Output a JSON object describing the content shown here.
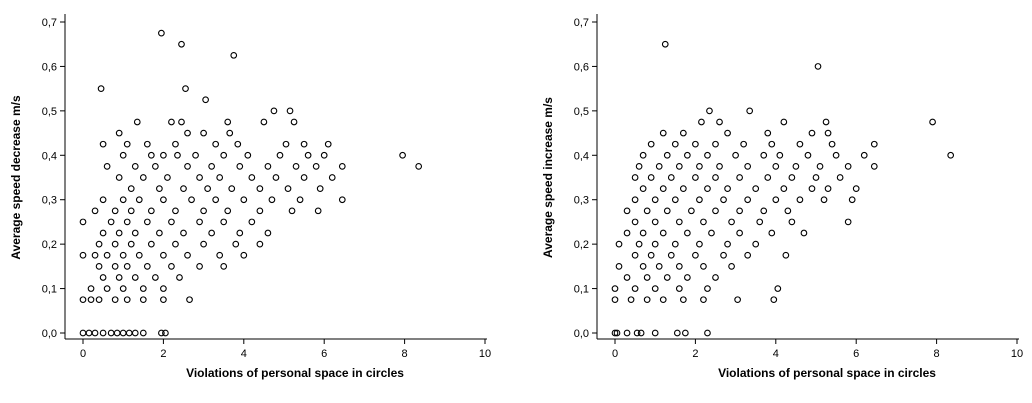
{
  "chart_data": [
    {
      "type": "scatter",
      "title": "",
      "xlabel": "Violations of personal space in circles",
      "ylabel": "Average speed decrease m/s",
      "xlim": [
        0,
        10
      ],
      "ylim": [
        0,
        0.7
      ],
      "x_ticks": [
        "0",
        "2",
        "4",
        "6",
        "8",
        "10"
      ],
      "y_ticks": [
        "0,0",
        "0,1",
        "0,2",
        "0,3",
        "0,4",
        "0,5",
        "0,6",
        "0,7"
      ],
      "grid": false,
      "marker": "open-circle",
      "points": [
        [
          1.95,
          0.675
        ],
        [
          2.45,
          0.65
        ],
        [
          3.75,
          0.625
        ],
        [
          2.55,
          0.55
        ],
        [
          0.45,
          0.55
        ],
        [
          3.05,
          0.525
        ],
        [
          2.2,
          0.475
        ],
        [
          2.45,
          0.475
        ],
        [
          3.6,
          0.475
        ],
        [
          4.75,
          0.5
        ],
        [
          5.15,
          0.5
        ],
        [
          1.35,
          0.475
        ],
        [
          0.9,
          0.45
        ],
        [
          2.6,
          0.45
        ],
        [
          3.0,
          0.45
        ],
        [
          3.65,
          0.45
        ],
        [
          4.5,
          0.475
        ],
        [
          5.25,
          0.475
        ],
        [
          0.5,
          0.425
        ],
        [
          1.1,
          0.425
        ],
        [
          1.6,
          0.425
        ],
        [
          2.3,
          0.425
        ],
        [
          3.3,
          0.425
        ],
        [
          3.85,
          0.425
        ],
        [
          5.05,
          0.425
        ],
        [
          5.5,
          0.425
        ],
        [
          6.1,
          0.425
        ],
        [
          7.95,
          0.4
        ],
        [
          8.35,
          0.375
        ],
        [
          6.45,
          0.375
        ],
        [
          1.0,
          0.4
        ],
        [
          1.7,
          0.4
        ],
        [
          2.0,
          0.4
        ],
        [
          2.35,
          0.4
        ],
        [
          2.8,
          0.4
        ],
        [
          3.5,
          0.4
        ],
        [
          4.1,
          0.4
        ],
        [
          4.9,
          0.4
        ],
        [
          5.6,
          0.4
        ],
        [
          6.0,
          0.4
        ],
        [
          0.6,
          0.375
        ],
        [
          1.3,
          0.375
        ],
        [
          1.8,
          0.375
        ],
        [
          2.6,
          0.375
        ],
        [
          3.2,
          0.375
        ],
        [
          3.9,
          0.375
        ],
        [
          4.6,
          0.375
        ],
        [
          5.3,
          0.375
        ],
        [
          5.8,
          0.375
        ],
        [
          0.9,
          0.35
        ],
        [
          1.5,
          0.35
        ],
        [
          2.1,
          0.35
        ],
        [
          2.9,
          0.35
        ],
        [
          3.4,
          0.35
        ],
        [
          4.2,
          0.35
        ],
        [
          4.8,
          0.35
        ],
        [
          5.5,
          0.35
        ],
        [
          6.2,
          0.35
        ],
        [
          1.2,
          0.325
        ],
        [
          1.9,
          0.325
        ],
        [
          2.5,
          0.325
        ],
        [
          3.1,
          0.325
        ],
        [
          3.7,
          0.325
        ],
        [
          4.4,
          0.325
        ],
        [
          5.1,
          0.325
        ],
        [
          5.9,
          0.325
        ],
        [
          0.5,
          0.3
        ],
        [
          1.0,
          0.3
        ],
        [
          1.4,
          0.3
        ],
        [
          2.0,
          0.3
        ],
        [
          2.7,
          0.3
        ],
        [
          3.3,
          0.3
        ],
        [
          4.0,
          0.3
        ],
        [
          4.7,
          0.3
        ],
        [
          5.4,
          0.3
        ],
        [
          6.45,
          0.3
        ],
        [
          0.3,
          0.275
        ],
        [
          0.8,
          0.275
        ],
        [
          1.2,
          0.275
        ],
        [
          1.7,
          0.275
        ],
        [
          2.3,
          0.275
        ],
        [
          3.0,
          0.275
        ],
        [
          3.6,
          0.275
        ],
        [
          4.4,
          0.275
        ],
        [
          5.2,
          0.275
        ],
        [
          5.85,
          0.275
        ],
        [
          0.0,
          0.25
        ],
        [
          0.7,
          0.25
        ],
        [
          1.1,
          0.25
        ],
        [
          1.6,
          0.25
        ],
        [
          2.2,
          0.25
        ],
        [
          2.9,
          0.25
        ],
        [
          3.5,
          0.25
        ],
        [
          4.2,
          0.25
        ],
        [
          0.5,
          0.225
        ],
        [
          0.9,
          0.225
        ],
        [
          1.3,
          0.225
        ],
        [
          1.9,
          0.225
        ],
        [
          2.5,
          0.225
        ],
        [
          3.2,
          0.225
        ],
        [
          3.9,
          0.225
        ],
        [
          4.6,
          0.225
        ],
        [
          0.4,
          0.2
        ],
        [
          0.8,
          0.2
        ],
        [
          1.2,
          0.2
        ],
        [
          1.7,
          0.2
        ],
        [
          2.3,
          0.2
        ],
        [
          3.0,
          0.2
        ],
        [
          3.8,
          0.2
        ],
        [
          4.4,
          0.2
        ],
        [
          0.0,
          0.175
        ],
        [
          0.3,
          0.175
        ],
        [
          0.6,
          0.175
        ],
        [
          1.0,
          0.175
        ],
        [
          1.4,
          0.175
        ],
        [
          2.0,
          0.175
        ],
        [
          2.6,
          0.175
        ],
        [
          3.4,
          0.175
        ],
        [
          4.0,
          0.175
        ],
        [
          0.4,
          0.15
        ],
        [
          0.8,
          0.15
        ],
        [
          1.1,
          0.15
        ],
        [
          1.6,
          0.15
        ],
        [
          2.2,
          0.15
        ],
        [
          2.9,
          0.15
        ],
        [
          3.5,
          0.15
        ],
        [
          0.5,
          0.125
        ],
        [
          0.9,
          0.125
        ],
        [
          1.3,
          0.125
        ],
        [
          1.8,
          0.125
        ],
        [
          2.4,
          0.125
        ],
        [
          0.2,
          0.1
        ],
        [
          0.6,
          0.1
        ],
        [
          1.0,
          0.1
        ],
        [
          1.5,
          0.1
        ],
        [
          2.0,
          0.1
        ],
        [
          0.0,
          0.075
        ],
        [
          0.2,
          0.075
        ],
        [
          0.4,
          0.075
        ],
        [
          0.8,
          0.075
        ],
        [
          1.1,
          0.075
        ],
        [
          1.5,
          0.075
        ],
        [
          2.0,
          0.075
        ],
        [
          2.65,
          0.075
        ],
        [
          0.0,
          0.0
        ],
        [
          0.15,
          0.0
        ],
        [
          0.3,
          0.0
        ],
        [
          0.5,
          0.0
        ],
        [
          0.7,
          0.0
        ],
        [
          0.85,
          0.0
        ],
        [
          1.0,
          0.0
        ],
        [
          1.15,
          0.0
        ],
        [
          1.3,
          0.0
        ],
        [
          1.5,
          0.0
        ],
        [
          1.95,
          0.0
        ],
        [
          2.05,
          0.0
        ]
      ]
    },
    {
      "type": "scatter",
      "title": "",
      "xlabel": "Violations of personal space in circles",
      "ylabel": "Average speed increase m/s",
      "xlim": [
        0,
        10
      ],
      "ylim": [
        0,
        0.7
      ],
      "x_ticks": [
        "0",
        "2",
        "4",
        "6",
        "8",
        "10"
      ],
      "y_ticks": [
        "0,0",
        "0,1",
        "0,2",
        "0,3",
        "0,4",
        "0,5",
        "0,6",
        "0,7"
      ],
      "grid": false,
      "marker": "open-circle",
      "points": [
        [
          1.25,
          0.65
        ],
        [
          5.05,
          0.6
        ],
        [
          2.35,
          0.5
        ],
        [
          3.35,
          0.5
        ],
        [
          1.2,
          0.45
        ],
        [
          2.15,
          0.475
        ],
        [
          2.6,
          0.475
        ],
        [
          4.2,
          0.475
        ],
        [
          5.25,
          0.475
        ],
        [
          7.9,
          0.475
        ],
        [
          1.7,
          0.45
        ],
        [
          2.8,
          0.45
        ],
        [
          3.8,
          0.45
        ],
        [
          4.9,
          0.45
        ],
        [
          5.3,
          0.45
        ],
        [
          0.9,
          0.425
        ],
        [
          1.5,
          0.425
        ],
        [
          2.0,
          0.425
        ],
        [
          2.5,
          0.425
        ],
        [
          3.2,
          0.425
        ],
        [
          3.9,
          0.425
        ],
        [
          4.6,
          0.425
        ],
        [
          5.4,
          0.425
        ],
        [
          6.45,
          0.425
        ],
        [
          0.7,
          0.4
        ],
        [
          1.3,
          0.4
        ],
        [
          1.8,
          0.4
        ],
        [
          2.3,
          0.4
        ],
        [
          3.0,
          0.4
        ],
        [
          3.7,
          0.4
        ],
        [
          4.1,
          0.4
        ],
        [
          4.8,
          0.4
        ],
        [
          5.5,
          0.4
        ],
        [
          6.2,
          0.4
        ],
        [
          8.35,
          0.4
        ],
        [
          0.6,
          0.375
        ],
        [
          1.1,
          0.375
        ],
        [
          1.6,
          0.375
        ],
        [
          2.1,
          0.375
        ],
        [
          2.6,
          0.375
        ],
        [
          3.3,
          0.375
        ],
        [
          4.0,
          0.375
        ],
        [
          4.5,
          0.375
        ],
        [
          5.1,
          0.375
        ],
        [
          5.8,
          0.375
        ],
        [
          6.45,
          0.375
        ],
        [
          0.5,
          0.35
        ],
        [
          0.9,
          0.35
        ],
        [
          1.4,
          0.35
        ],
        [
          2.0,
          0.35
        ],
        [
          2.5,
          0.35
        ],
        [
          3.1,
          0.35
        ],
        [
          3.8,
          0.35
        ],
        [
          4.4,
          0.35
        ],
        [
          5.0,
          0.35
        ],
        [
          5.6,
          0.35
        ],
        [
          0.7,
          0.325
        ],
        [
          1.2,
          0.325
        ],
        [
          1.7,
          0.325
        ],
        [
          2.3,
          0.325
        ],
        [
          2.8,
          0.325
        ],
        [
          3.5,
          0.325
        ],
        [
          4.2,
          0.325
        ],
        [
          4.9,
          0.325
        ],
        [
          5.3,
          0.325
        ],
        [
          6.0,
          0.325
        ],
        [
          0.5,
          0.3
        ],
        [
          1.0,
          0.3
        ],
        [
          1.5,
          0.3
        ],
        [
          2.1,
          0.3
        ],
        [
          2.7,
          0.3
        ],
        [
          3.3,
          0.3
        ],
        [
          4.0,
          0.3
        ],
        [
          4.6,
          0.3
        ],
        [
          5.2,
          0.3
        ],
        [
          5.9,
          0.3
        ],
        [
          0.3,
          0.275
        ],
        [
          0.8,
          0.275
        ],
        [
          1.3,
          0.275
        ],
        [
          1.9,
          0.275
        ],
        [
          2.5,
          0.275
        ],
        [
          3.1,
          0.275
        ],
        [
          3.7,
          0.275
        ],
        [
          4.3,
          0.275
        ],
        [
          0.5,
          0.25
        ],
        [
          1.0,
          0.25
        ],
        [
          1.6,
          0.25
        ],
        [
          2.2,
          0.25
        ],
        [
          2.9,
          0.25
        ],
        [
          3.6,
          0.25
        ],
        [
          4.4,
          0.25
        ],
        [
          5.8,
          0.25
        ],
        [
          0.3,
          0.225
        ],
        [
          0.7,
          0.225
        ],
        [
          1.2,
          0.225
        ],
        [
          1.8,
          0.225
        ],
        [
          2.4,
          0.225
        ],
        [
          3.1,
          0.225
        ],
        [
          3.9,
          0.225
        ],
        [
          4.7,
          0.225
        ],
        [
          0.1,
          0.2
        ],
        [
          0.6,
          0.2
        ],
        [
          1.0,
          0.2
        ],
        [
          1.5,
          0.2
        ],
        [
          2.1,
          0.2
        ],
        [
          2.8,
          0.2
        ],
        [
          3.5,
          0.2
        ],
        [
          0.5,
          0.175
        ],
        [
          0.9,
          0.175
        ],
        [
          1.4,
          0.175
        ],
        [
          2.0,
          0.175
        ],
        [
          2.7,
          0.175
        ],
        [
          3.3,
          0.175
        ],
        [
          4.25,
          0.175
        ],
        [
          0.1,
          0.15
        ],
        [
          0.7,
          0.15
        ],
        [
          1.1,
          0.15
        ],
        [
          1.6,
          0.15
        ],
        [
          2.2,
          0.15
        ],
        [
          2.9,
          0.15
        ],
        [
          0.3,
          0.125
        ],
        [
          0.8,
          0.125
        ],
        [
          1.3,
          0.125
        ],
        [
          1.8,
          0.125
        ],
        [
          2.5,
          0.125
        ],
        [
          0.0,
          0.1
        ],
        [
          0.5,
          0.1
        ],
        [
          1.0,
          0.1
        ],
        [
          1.6,
          0.1
        ],
        [
          2.3,
          0.1
        ],
        [
          4.05,
          0.1
        ],
        [
          0.0,
          0.075
        ],
        [
          0.4,
          0.075
        ],
        [
          0.8,
          0.075
        ],
        [
          1.2,
          0.075
        ],
        [
          1.7,
          0.075
        ],
        [
          2.2,
          0.075
        ],
        [
          3.05,
          0.075
        ],
        [
          3.95,
          0.075
        ],
        [
          0.0,
          0.0
        ],
        [
          0.05,
          0.0
        ],
        [
          0.3,
          0.0
        ],
        [
          0.55,
          0.0
        ],
        [
          0.65,
          0.0
        ],
        [
          1.0,
          0.0
        ],
        [
          1.55,
          0.0
        ],
        [
          1.75,
          0.0
        ],
        [
          2.3,
          0.0
        ]
      ]
    }
  ]
}
